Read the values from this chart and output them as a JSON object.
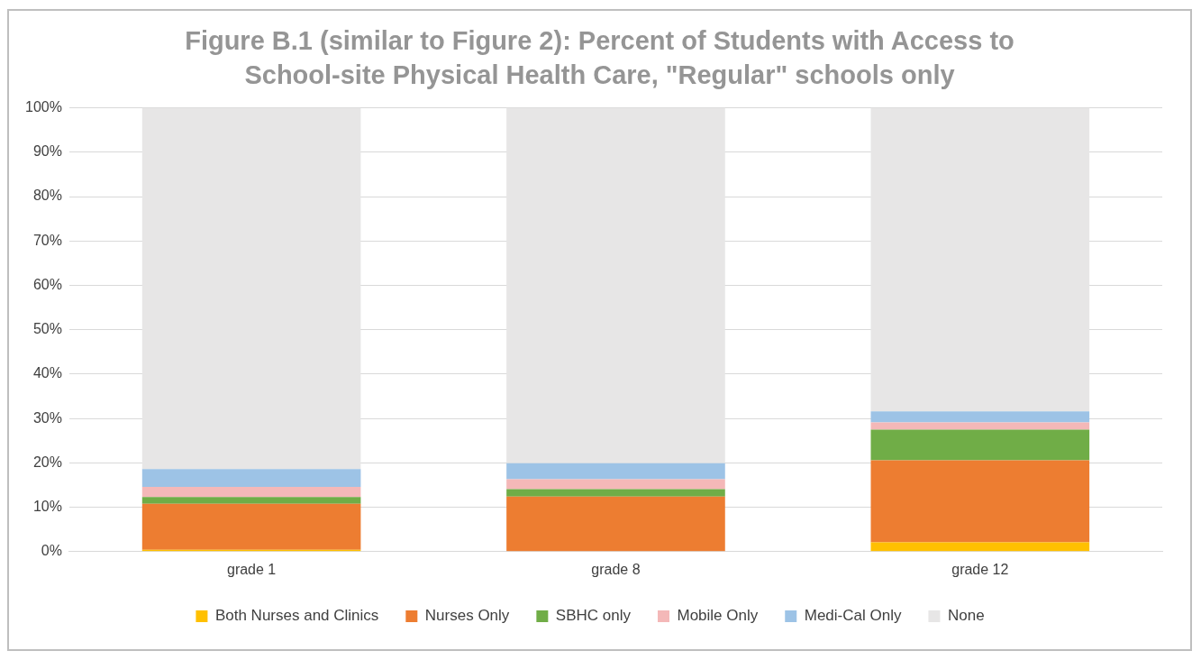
{
  "chart_data": {
    "type": "bar",
    "title": "Figure B.1 (similar to Figure 2): Percent of Students with Access to School-site Physical Health Care, \"Regular\" schools only",
    "categories": [
      "grade 1",
      "grade 8",
      "grade 12"
    ],
    "stacked": true,
    "series": [
      {
        "name": "Both Nurses and Clinics",
        "color": "#ffc000",
        "values": [
          0.4,
          0,
          2.1
        ]
      },
      {
        "name": "Nurses Only",
        "color": "#ed7d31",
        "values": [
          10.4,
          12.4,
          18.5
        ]
      },
      {
        "name": "SBHC only",
        "color": "#70ad47",
        "values": [
          1.5,
          1.7,
          6.9
        ]
      },
      {
        "name": "Mobile Only",
        "color": "#f4b8b8",
        "values": [
          2.3,
          2.2,
          1.6
        ]
      },
      {
        "name": "Medi-Cal Only",
        "color": "#9dc3e6",
        "values": [
          4.0,
          3.6,
          2.5
        ]
      },
      {
        "name": "None",
        "color": "#e7e6e6",
        "values": [
          81.4,
          80.1,
          68.4
        ]
      }
    ],
    "ylim": [
      0,
      100
    ],
    "yticks": [
      {
        "value": 0,
        "label": "0%"
      },
      {
        "value": 10,
        "label": "10%"
      },
      {
        "value": 20,
        "label": "20%"
      },
      {
        "value": 30,
        "label": "30%"
      },
      {
        "value": 40,
        "label": "40%"
      },
      {
        "value": 50,
        "label": "50%"
      },
      {
        "value": 60,
        "label": "60%"
      },
      {
        "value": 70,
        "label": "70%"
      },
      {
        "value": 80,
        "label": "80%"
      },
      {
        "value": 90,
        "label": "90%"
      },
      {
        "value": 100,
        "label": "100%"
      }
    ],
    "grid": "y",
    "legend": "bottom"
  }
}
